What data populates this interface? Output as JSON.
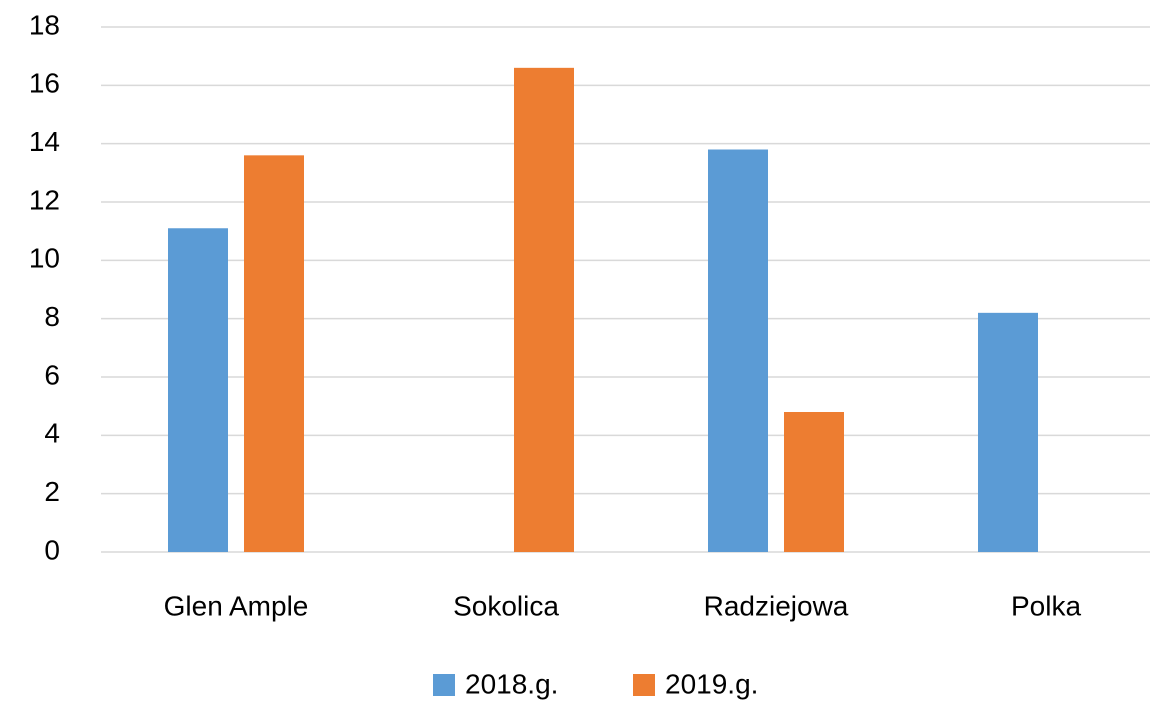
{
  "chart_data": {
    "type": "bar",
    "categories": [
      "Glen Ample",
      "Sokolica",
      "Radziejowa",
      "Polka"
    ],
    "series": [
      {
        "name": "2018.g.",
        "color": "#5b9bd5",
        "values": [
          11.1,
          null,
          13.8,
          8.2
        ]
      },
      {
        "name": "2019.g.",
        "color": "#ed7d31",
        "values": [
          13.6,
          16.6,
          4.8,
          null
        ]
      }
    ],
    "ylim": [
      0,
      18
    ],
    "yticks": [
      0,
      2,
      4,
      6,
      8,
      10,
      12,
      14,
      16,
      18
    ],
    "grid": true,
    "legend": "bottom"
  }
}
